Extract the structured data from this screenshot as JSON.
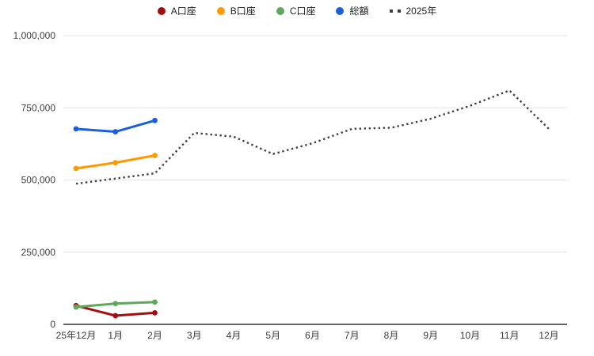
{
  "chart_title": "",
  "chart_data": {
    "type": "line",
    "categories": [
      "25年12月",
      "1月",
      "2月",
      "3月",
      "4月",
      "5月",
      "6月",
      "7月",
      "8月",
      "9月",
      "10月",
      "11月",
      "12月"
    ],
    "series": [
      {
        "name": "A口座",
        "color": "#a50e0e",
        "style": "solid",
        "values": [
          65000,
          30000,
          40000
        ]
      },
      {
        "name": "B口座",
        "color": "#ff9900",
        "style": "solid",
        "values": [
          540000,
          560000,
          585000
        ]
      },
      {
        "name": "C口座",
        "color": "#5fa85a",
        "style": "solid",
        "values": [
          60000,
          72000,
          77000
        ]
      },
      {
        "name": "総額",
        "color": "#1a5fe0",
        "style": "solid",
        "values": [
          677000,
          667000,
          706000
        ]
      },
      {
        "name": "2025年",
        "color": "#404040",
        "style": "dotted",
        "values": [
          487000,
          505000,
          523000,
          663000,
          650000,
          590000,
          627000,
          677000,
          681000,
          712000,
          757000,
          810000,
          677000
        ]
      }
    ],
    "xlabel": "",
    "ylabel": "",
    "ylim": [
      0,
      1000000
    ],
    "yticks": [
      0,
      250000,
      500000,
      750000,
      1000000
    ],
    "ytick_labels": [
      "0",
      "250,000",
      "500,000",
      "750,000",
      "1,000,000"
    ],
    "grid": true,
    "legend_position": "top",
    "colors": {
      "gridline": "#e3e3e3",
      "axis_line": "#333333",
      "tick_text": "#3c3c3c",
      "background": "#ffffff"
    }
  }
}
